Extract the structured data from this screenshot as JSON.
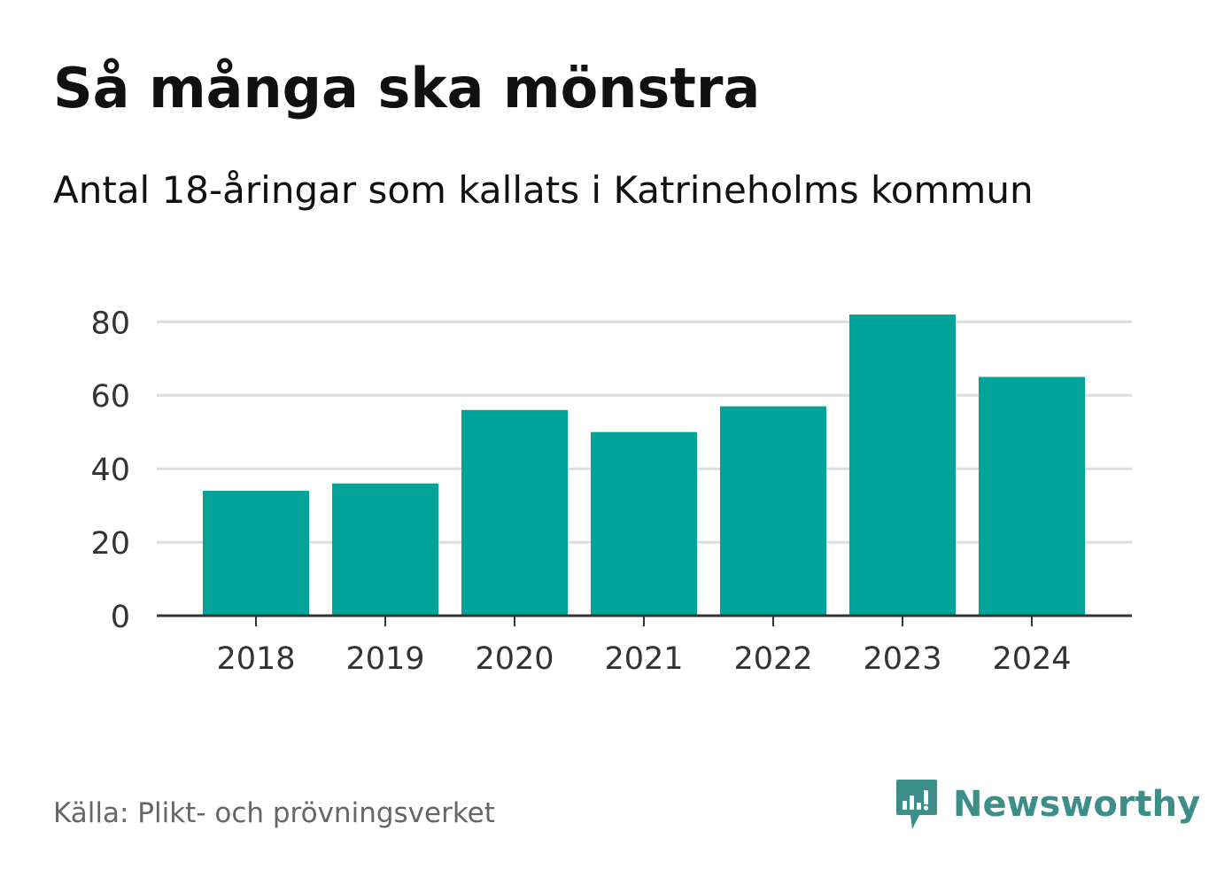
{
  "header": {
    "title": "Så många ska mönstra",
    "subtitle": "Antal 18-åringar som kallats i Katrineholms kommun"
  },
  "footer": {
    "source": "Källa: Plikt- och prövningsverket",
    "brand": "Newsworthy"
  },
  "colors": {
    "bar": "#02a49a",
    "grid": "#dddddd",
    "axis": "#333333",
    "brand": "#3c8f89"
  },
  "chart_data": {
    "type": "bar",
    "categories": [
      "2018",
      "2019",
      "2020",
      "2021",
      "2022",
      "2023",
      "2024"
    ],
    "values": [
      34,
      36,
      56,
      50,
      57,
      82,
      65
    ],
    "yticks": [
      0,
      20,
      40,
      60,
      80
    ],
    "ylim": [
      0,
      82
    ],
    "xlabel": "",
    "ylabel": "",
    "grid": true
  }
}
